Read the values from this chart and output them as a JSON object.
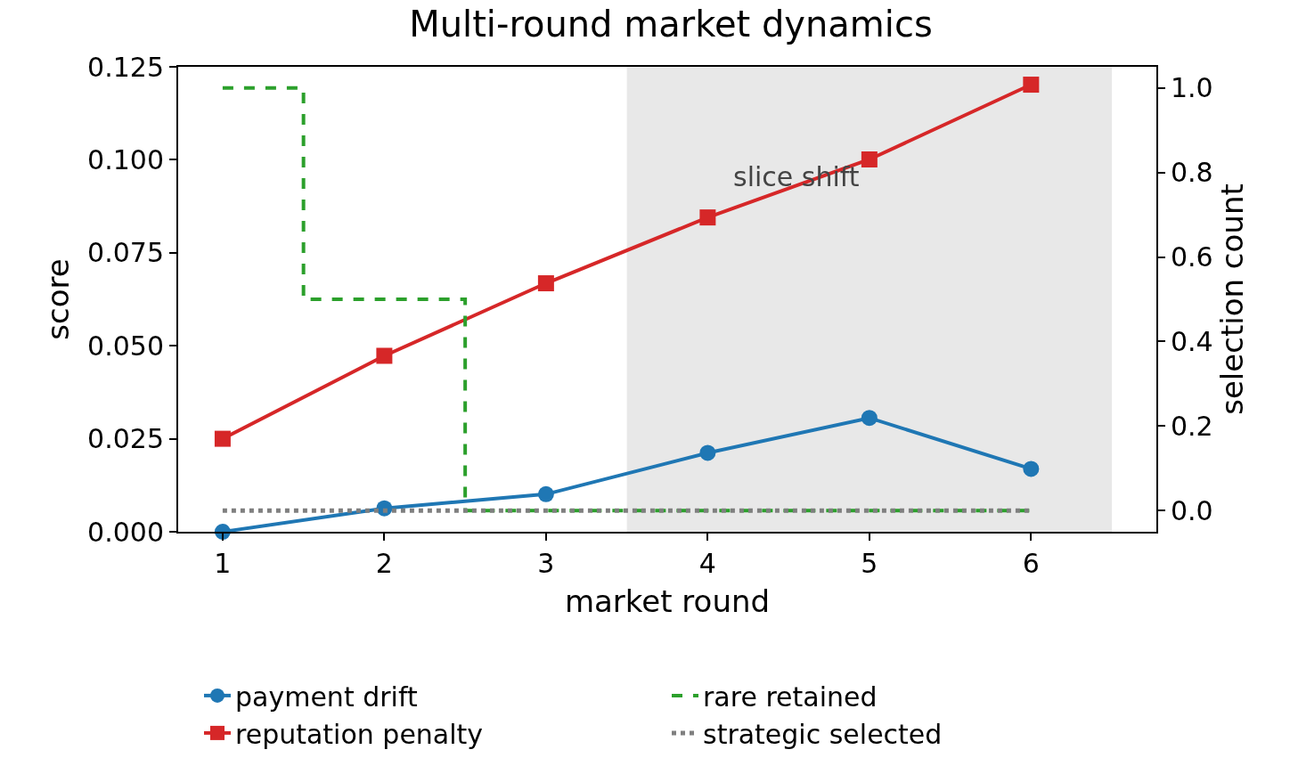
{
  "chart_data": {
    "type": "line",
    "title": "Multi-round market dynamics",
    "xlabel": "market round",
    "ylabel": "score",
    "y2label": "selection count",
    "x": [
      1,
      2,
      3,
      4,
      5,
      6
    ],
    "series": [
      {
        "name": "payment drift",
        "color": "#1f77b4",
        "marker": "circle",
        "line_style": "solid",
        "values": [
          0.0,
          0.0063,
          0.0101,
          0.0212,
          0.0306,
          0.0169
        ]
      },
      {
        "name": "reputation penalty",
        "color": "#d62728",
        "marker": "square",
        "line_style": "solid",
        "values": [
          0.025,
          0.0473,
          0.0668,
          0.0845,
          0.1001,
          0.1202
        ]
      },
      {
        "name": "rare retained",
        "type": "step",
        "color": "#2ca02c",
        "marker": "none",
        "line_style": "dashed",
        "axis": "y2",
        "values": [
          1,
          0.5,
          0,
          0,
          0,
          0
        ]
      },
      {
        "name": "strategic selected",
        "color": "#7f7f7f",
        "marker": "none",
        "line_style": "dotted",
        "axis": "y2",
        "values": [
          0,
          0,
          0,
          0,
          0,
          0
        ]
      }
    ],
    "xlim": [
      0.725,
      6.775
    ],
    "xticks": [
      1,
      2,
      3,
      4,
      5,
      6
    ],
    "ylim": [
      0,
      0.125
    ],
    "yticks": [
      {
        "value": 0,
        "label": "0.000"
      },
      {
        "value": 0.025,
        "label": "0.025"
      },
      {
        "value": 0.05,
        "label": "0.050"
      },
      {
        "value": 0.075,
        "label": "0.075"
      },
      {
        "value": 0.1,
        "label": "0.100"
      },
      {
        "value": 0.125,
        "label": "0.125"
      }
    ],
    "y2lim": [
      -0.05,
      1.05
    ],
    "y2ticks": [
      {
        "value": 0,
        "label": "0.0"
      },
      {
        "value": 0.2,
        "label": "0.2"
      },
      {
        "value": 0.4,
        "label": "0.4"
      },
      {
        "value": 0.6,
        "label": "0.6"
      },
      {
        "value": 0.8,
        "label": "0.8"
      },
      {
        "value": 1,
        "label": "1.0"
      }
    ],
    "bands": [
      {
        "axis": "x",
        "from": 3.5,
        "to": 6.5,
        "label": "slice shift",
        "color": "#e8e8e8"
      }
    ],
    "grid": false,
    "legend": "bottom"
  }
}
